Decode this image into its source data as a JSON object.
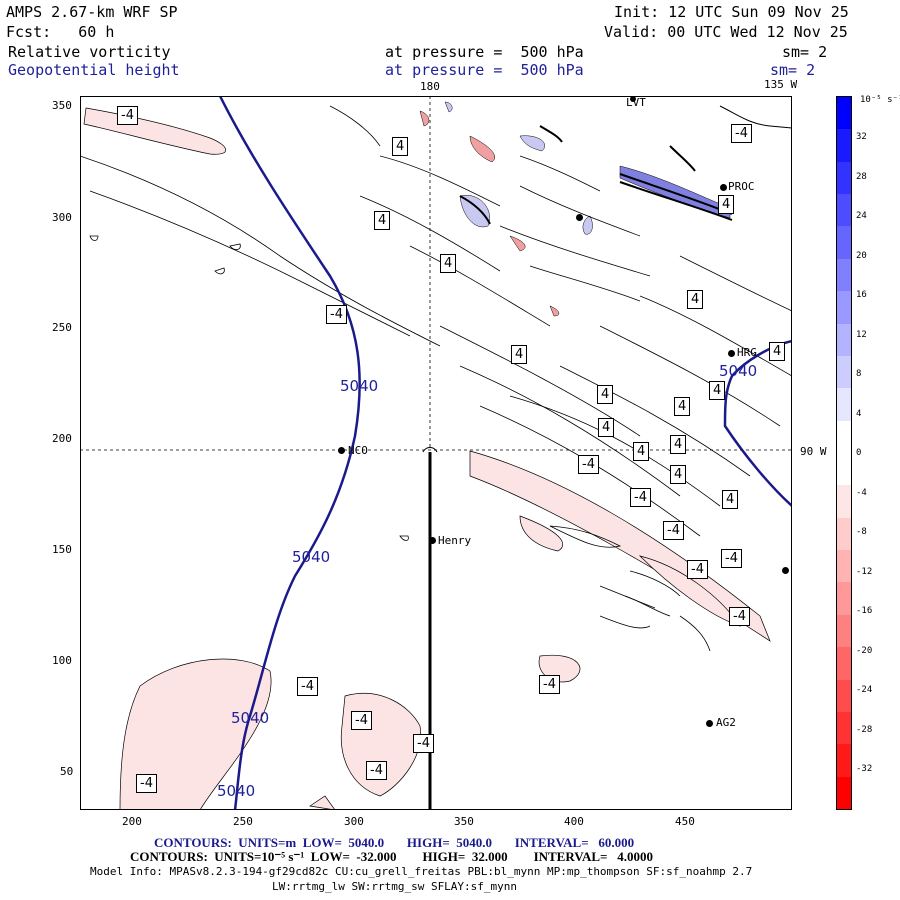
{
  "header": {
    "model_title": "AMPS 2.67-km WRF SP",
    "forecast": "Fcst:   60 h",
    "init": "Init: 12 UTC Sun 09 Nov 25",
    "valid": "Valid: 00 UTC Wed 12 Nov 25",
    "field1_name": "Relative vorticity",
    "field1_level": "at pressure =  500 hPa",
    "field1_sm": "sm= 2",
    "field2_name": "Geopotential height",
    "field2_level": "at pressure =  500 hPa",
    "field2_sm": "sm= 2"
  },
  "map": {
    "meridian_labels": [
      "180",
      "135 W",
      "90 W"
    ],
    "x_ticks": [
      "200",
      "250",
      "300",
      "350",
      "400",
      "450"
    ],
    "y_ticks": [
      "350",
      "300",
      "250",
      "200",
      "150",
      "100",
      "50"
    ],
    "stations": [
      "LVT",
      "PROC",
      "HRG",
      "NCO",
      "Henry",
      "AG2"
    ],
    "height_contour_label": "5040",
    "vorticity_label_pos": "4",
    "vorticity_label_neg": "-4"
  },
  "colorbar": {
    "unit_label": "10⁻⁵ s⁻¹",
    "ticks": [
      "32",
      "28",
      "24",
      "20",
      "16",
      "12",
      "8",
      "4",
      "0",
      "-4",
      "-8",
      "-12",
      "-16",
      "-20",
      "-24",
      "-28",
      "-32"
    ],
    "colors": [
      "#0000ff",
      "#1a1aff",
      "#3333ff",
      "#4d4dff",
      "#6666ff",
      "#8080ff",
      "#9999ff",
      "#b3b3ff",
      "#ccccff",
      "#e6e6ff",
      "#ffffff",
      "#ffffff",
      "#ffe6e6",
      "#ffcccc",
      "#ffb3b3",
      "#ff9999",
      "#ff8080",
      "#ff6666",
      "#ff4d4d",
      "#ff3333",
      "#ff1a1a",
      "#ff0000"
    ]
  },
  "footer": {
    "contours_height": "CONTOURS:  UNITS=m  LOW=  5040.0       HIGH=  5040.0       INTERVAL=   60.000",
    "contours_vort": "CONTOURS:  UNITS=10⁻⁵ s⁻¹  LOW=  -32.000        HIGH=  32.000        INTERVAL=   4.0000",
    "model_info": "Model Info: MPASv8.2.3-194-gf29cd82c CU:cu_grell_freitas PBL:bl_mynn MP:mp_thompson SF:sf_noahmp 2.7",
    "model_info2": "LW:rrtmg_lw SW:rrtmg_sw SFLAY:sf_mynn"
  },
  "colors": {
    "height_contour": "#1a1a8c",
    "neg_fill": "#fde6e6",
    "pos_fill": "#c8c8f0"
  }
}
